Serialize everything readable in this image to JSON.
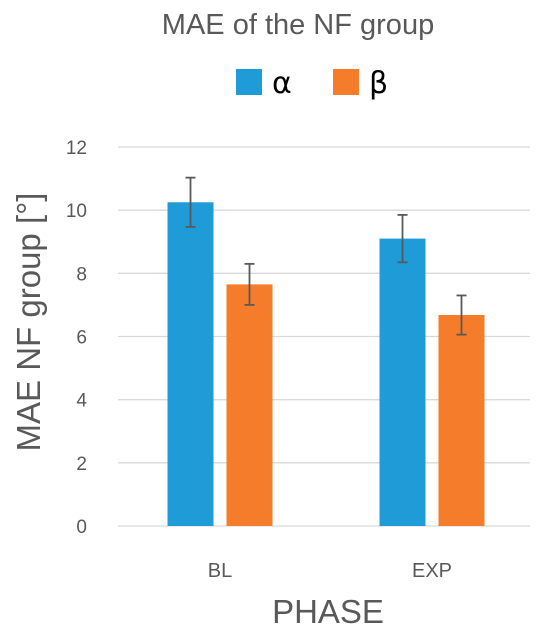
{
  "chart_data": {
    "type": "bar",
    "title": "MAE of the NF group",
    "xlabel": "PHASE",
    "ylabel": "MAE NF group [°]",
    "categories": [
      "BL",
      "EXP"
    ],
    "series": [
      {
        "name": "α",
        "color": "#1f9bd7",
        "values": [
          10.25,
          9.1
        ],
        "error": [
          0.78,
          0.75
        ]
      },
      {
        "name": "β",
        "color": "#f47c2a",
        "values": [
          7.65,
          6.68
        ],
        "error": [
          0.65,
          0.62
        ]
      }
    ],
    "ylim": [
      0,
      12
    ],
    "yticks": [
      "0",
      "2",
      "4",
      "6",
      "8",
      "10",
      "12"
    ],
    "grid": true,
    "legend_position": "top-center",
    "colors": {
      "text": "#595959",
      "grid": "#d9d9d9",
      "error_bar": "#595959"
    }
  }
}
